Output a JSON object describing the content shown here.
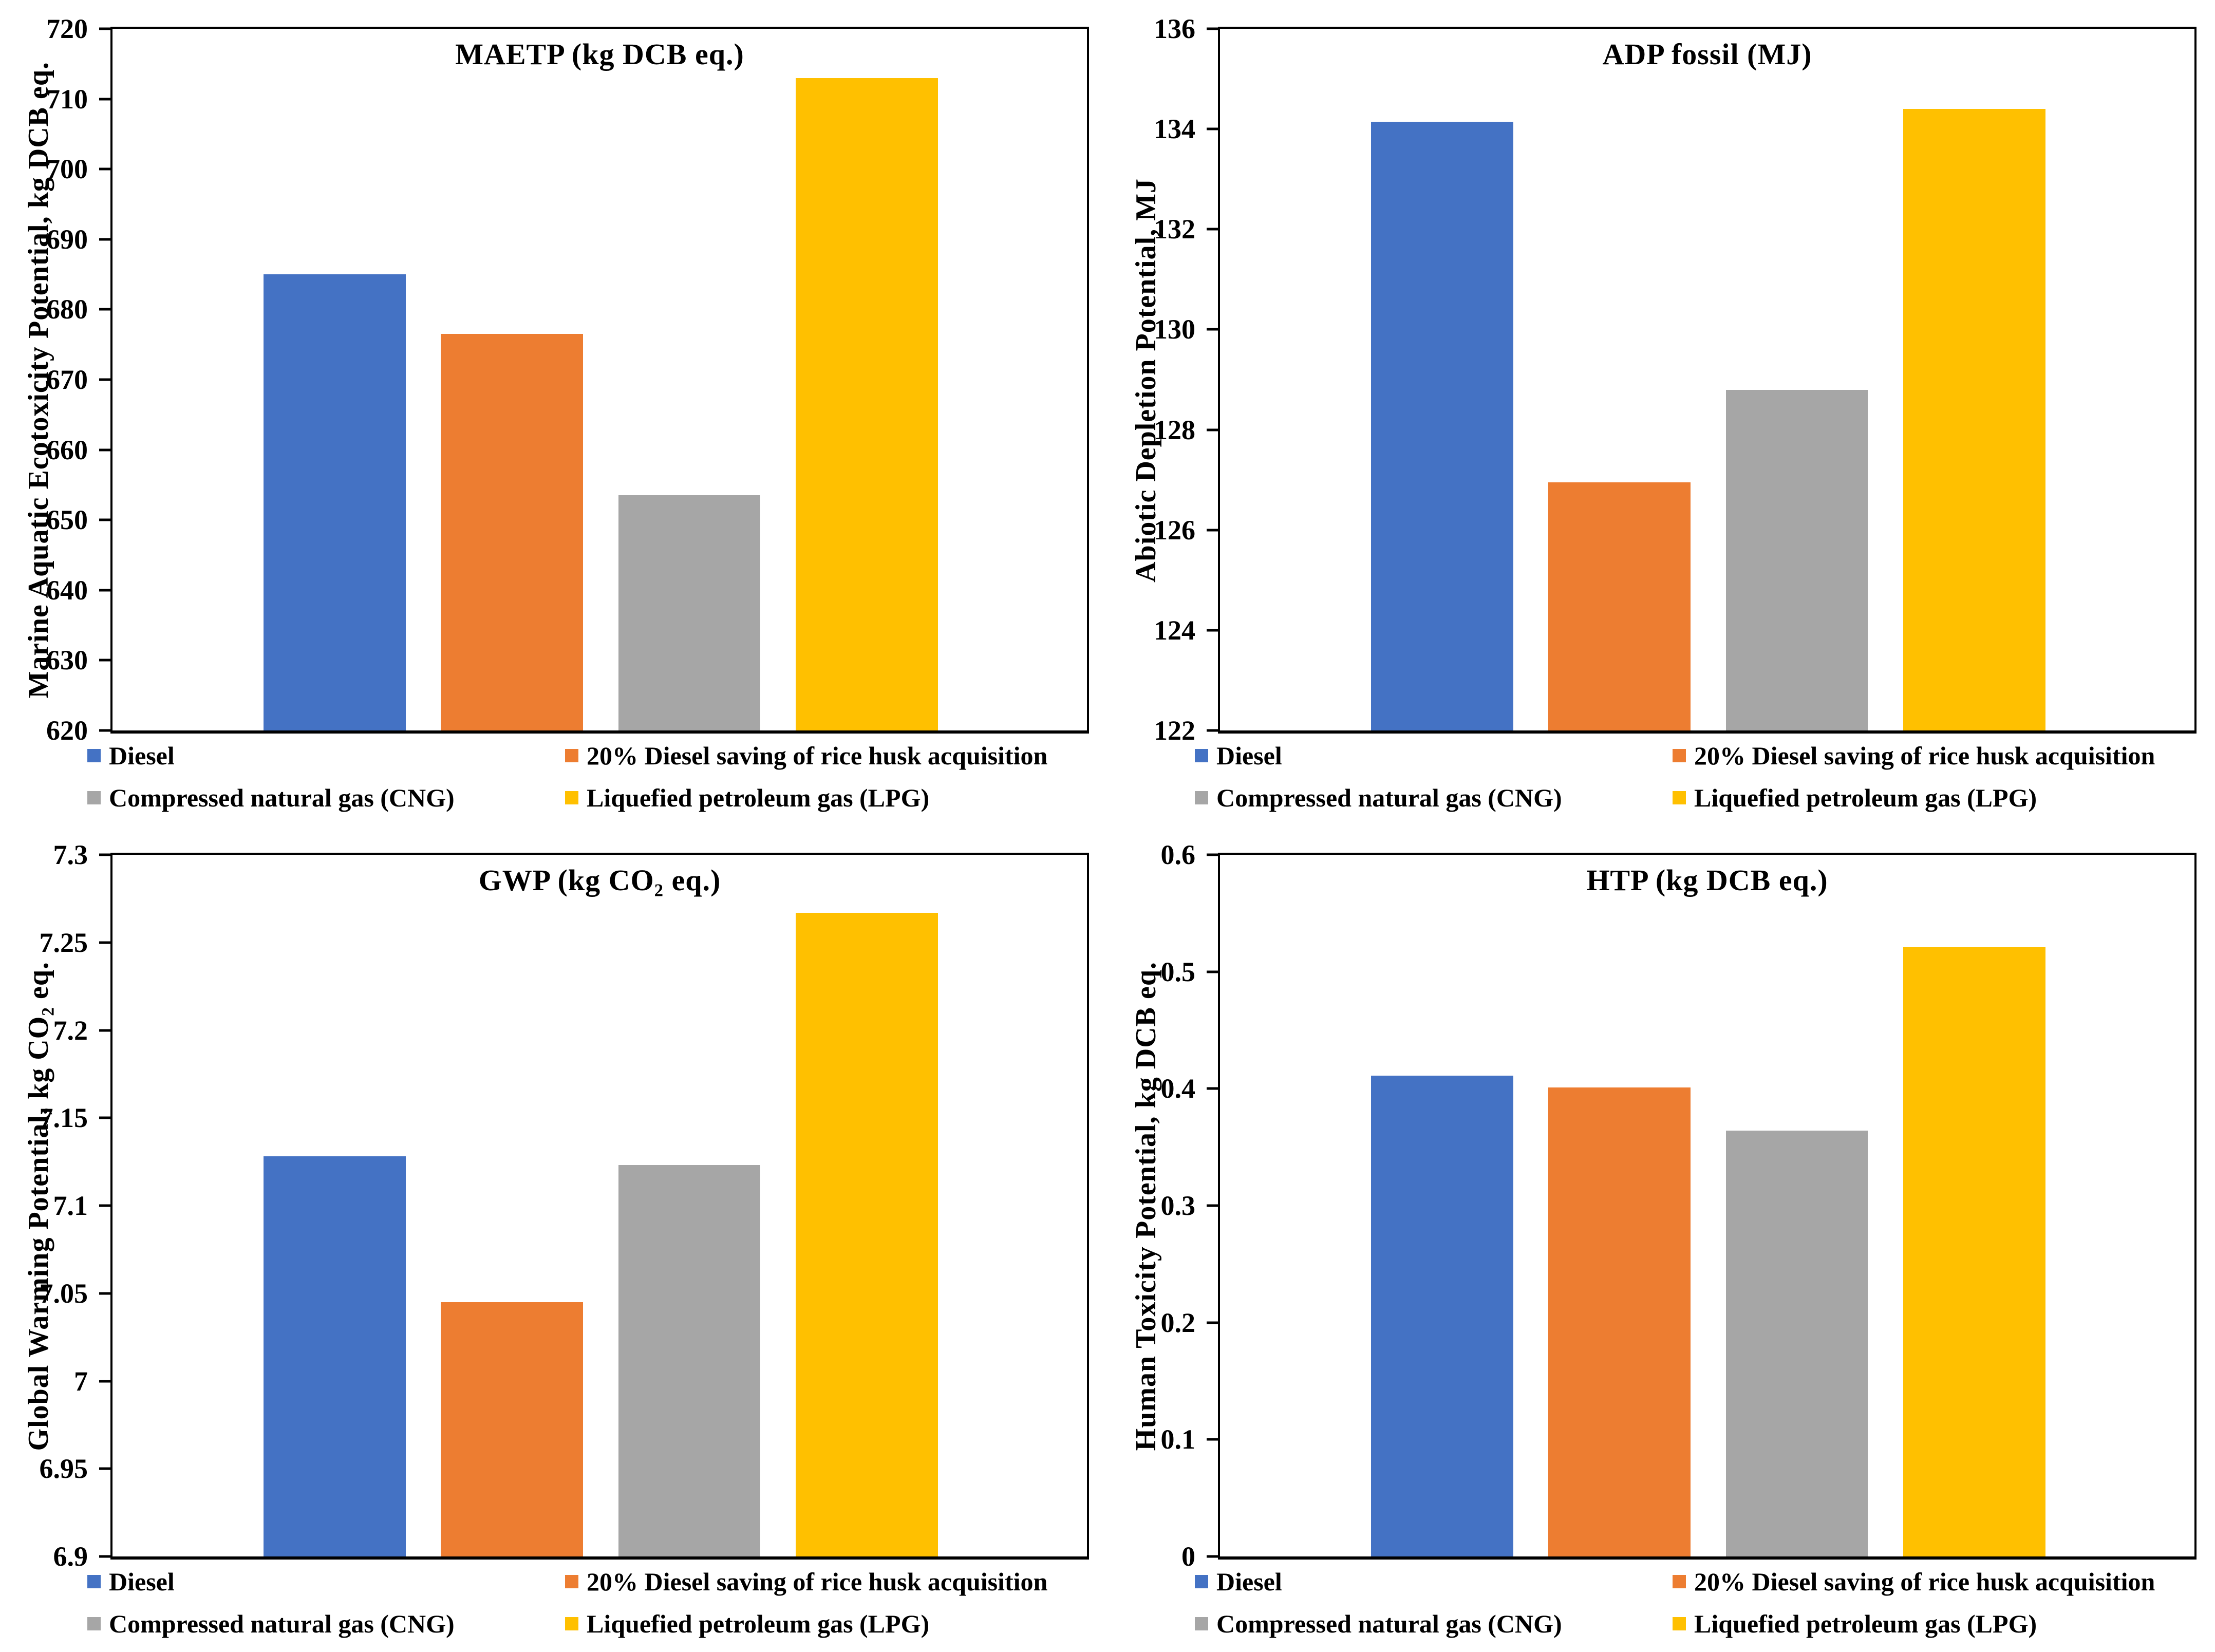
{
  "legend": {
    "items": [
      {
        "label": "Diesel",
        "color": "#4472C4"
      },
      {
        "label": "20% Diesel saving of rice husk acquisition",
        "color": "#ED7D31"
      },
      {
        "label": "Compressed natural gas (CNG)",
        "color": "#A6A6A6"
      },
      {
        "label": "Liquefied petroleum gas (LPG)",
        "color": "#FFC000"
      }
    ]
  },
  "chart_data": [
    {
      "type": "bar",
      "title": "MAETP (kg DCB eq.)",
      "ylabel": "Marine Aquatic Ecotoxicity Potential, kg DCB eq.",
      "ylim": [
        620,
        720
      ],
      "yticks": [
        "620",
        "630",
        "640",
        "650",
        "660",
        "670",
        "680",
        "690",
        "700",
        "710",
        "720"
      ],
      "categories": [
        "Diesel",
        "20% Diesel saving of rice husk acquisition",
        "Compressed natural gas (CNG)",
        "Liquefied petroleum gas (LPG)"
      ],
      "values": [
        685,
        676.5,
        653.5,
        713
      ],
      "grid": false,
      "legend_position": "bottom"
    },
    {
      "type": "bar",
      "title": "ADP fossil (MJ)",
      "ylabel": "Abiotic Depletion Potential, MJ",
      "ylim": [
        122,
        136
      ],
      "yticks": [
        "122",
        "124",
        "126",
        "128",
        "130",
        "132",
        "134",
        "136"
      ],
      "categories": [
        "Diesel",
        "20% Diesel saving of rice husk acquisition",
        "Compressed natural gas (CNG)",
        "Liquefied petroleum gas (LPG)"
      ],
      "values": [
        134.15,
        126.95,
        128.8,
        134.4
      ],
      "grid": false,
      "legend_position": "bottom"
    },
    {
      "type": "bar",
      "title": "GWP (kg CO₂ eq.)",
      "ylabel": "Global Warming Potential, kg CO₂ eq.",
      "ylim": [
        6.9,
        7.3
      ],
      "yticks": [
        "6.9",
        "6.95",
        "7",
        "7.05",
        "7.1",
        "7.15",
        "7.2",
        "7.25",
        "7.3"
      ],
      "categories": [
        "Diesel",
        "20% Diesel saving of rice husk acquisition",
        "Compressed natural gas (CNG)",
        "Liquefied petroleum gas (LPG)"
      ],
      "values": [
        7.128,
        7.045,
        7.123,
        7.267
      ],
      "grid": false,
      "legend_position": "bottom"
    },
    {
      "type": "bar",
      "title": "HTP (kg DCB eq.)",
      "ylabel": "Human Toxicity Potential, kg DCB eq.",
      "ylim": [
        0,
        0.6
      ],
      "yticks": [
        "0",
        "0.1",
        "0.2",
        "0.3",
        "0.4",
        "0.5",
        "0.6"
      ],
      "categories": [
        "Diesel",
        "20% Diesel saving of rice husk acquisition",
        "Compressed natural gas (CNG)",
        "Liquefied petroleum gas (LPG)"
      ],
      "values": [
        0.411,
        0.401,
        0.364,
        0.521
      ],
      "grid": false,
      "legend_position": "bottom"
    }
  ]
}
